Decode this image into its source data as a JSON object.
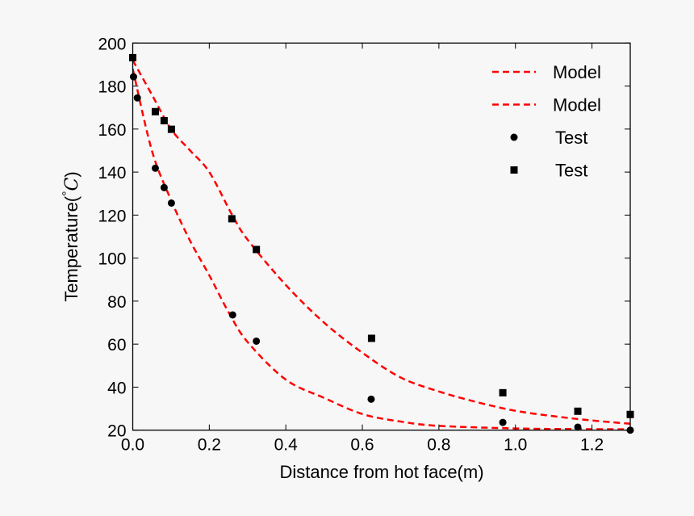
{
  "chart_data": {
    "type": "scatter",
    "title": "",
    "xlabel": "Distance from hot face(m)",
    "ylabel": "Temperature(°C)",
    "ylabel_parts": {
      "text": "Temperature(",
      "degree": "°",
      "unit": "C",
      "close": ")"
    },
    "xlim": [
      0.0,
      1.3
    ],
    "ylim": [
      20,
      200
    ],
    "xticks": [
      "0.0",
      "0.2",
      "0.4",
      "0.6",
      "0.8",
      "1.0",
      "1.2"
    ],
    "xtick_values": [
      0.0,
      0.2,
      0.4,
      0.6,
      0.8,
      1.0,
      1.2
    ],
    "yticks": [
      "20",
      "40",
      "60",
      "80",
      "100",
      "120",
      "140",
      "160",
      "180",
      "200"
    ],
    "ytick_values": [
      20,
      40,
      60,
      80,
      100,
      120,
      140,
      160,
      180,
      200
    ],
    "grid": false,
    "legend_position": "top-right",
    "series": [
      {
        "name": "Model",
        "kind": "line",
        "style": "dashed",
        "color": "#ff0000",
        "x": [
          0,
          0.05,
          0.1,
          0.15,
          0.2,
          0.25,
          0.3,
          0.4,
          0.5,
          0.6,
          0.7,
          0.8,
          1.0,
          1.15,
          1.3
        ],
        "y": [
          188,
          150,
          127,
          108,
          92,
          75,
          61,
          43.5,
          35,
          27.5,
          24,
          22,
          20.8,
          20.5,
          20.4
        ]
      },
      {
        "name": "Model",
        "kind": "line",
        "style": "dashed",
        "color": "#ff0000",
        "x": [
          0,
          0.05,
          0.1,
          0.15,
          0.2,
          0.26,
          0.3,
          0.4,
          0.5,
          0.6,
          0.7,
          0.8,
          0.9,
          1.0,
          1.1,
          1.2,
          1.3
        ],
        "y": [
          192,
          176,
          160,
          150,
          140,
          120,
          108.6,
          87.5,
          70,
          56,
          44.5,
          38,
          33,
          29,
          26.5,
          24.5,
          23
        ]
      },
      {
        "name": "Test",
        "kind": "scatter",
        "marker": "circle",
        "color": "#000000",
        "x": [
          0.002,
          0.012,
          0.059,
          0.082,
          0.101,
          0.261,
          0.323,
          0.623,
          0.967,
          1.163,
          1.3
        ],
        "y": [
          184.3,
          174.5,
          141.8,
          132.8,
          125.6,
          73.6,
          61.4,
          34.4,
          23.6,
          21.4,
          20
        ]
      },
      {
        "name": "Test",
        "kind": "scatter",
        "marker": "square",
        "color": "#000000",
        "x": [
          0.0,
          0.059,
          0.082,
          0.101,
          0.259,
          0.323,
          0.624,
          0.967,
          1.163,
          1.3
        ],
        "y": [
          193.2,
          168.1,
          163.9,
          159.9,
          118.3,
          104,
          62.7,
          37.4,
          28.8,
          27.3
        ]
      }
    ]
  }
}
